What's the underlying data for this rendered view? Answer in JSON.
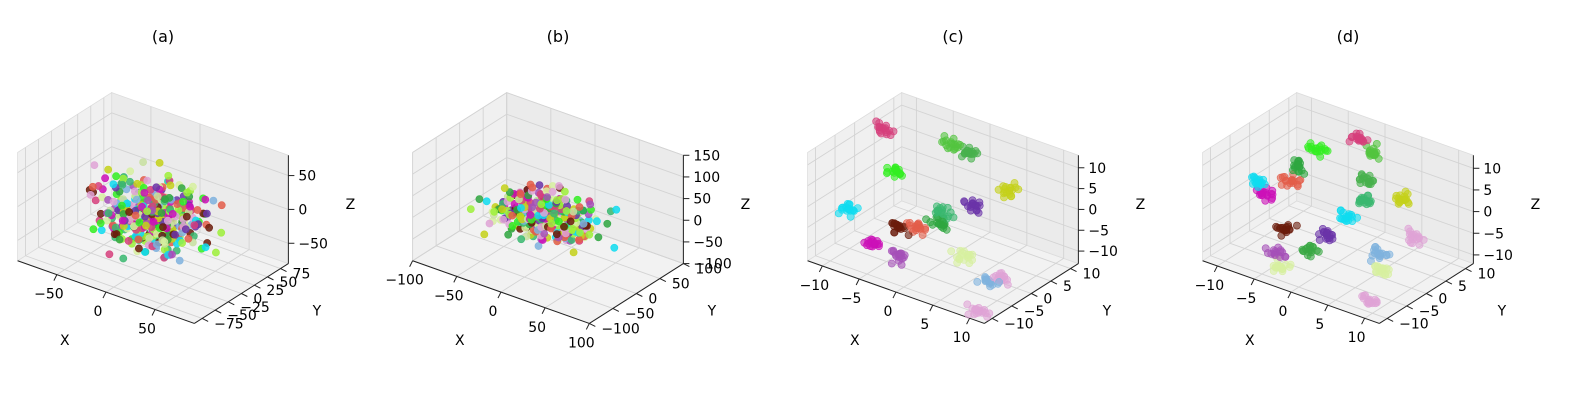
{
  "chart_data": [
    {
      "type": "scatter",
      "title": "(a)",
      "xlabel": "X",
      "ylabel": "Y",
      "zlabel": "Z",
      "xlim": [
        -90,
        90
      ],
      "ylim": [
        -90,
        90
      ],
      "zlim": [
        -80,
        80
      ],
      "xticks": [
        -50,
        0,
        50
      ],
      "xtick_labels": [
        "−50",
        "0",
        "50"
      ],
      "yticks": [
        -75,
        -50,
        -25,
        0,
        25,
        50,
        75
      ],
      "ytick_labels": [
        "−75",
        "−50",
        "−25",
        "0",
        "25",
        "50",
        "75"
      ],
      "zticks": [
        -50,
        0,
        50
      ],
      "ztick_labels": [
        "−50",
        "0",
        "50"
      ],
      "distribution": "dispersed",
      "n_points": 420,
      "spread": [
        48,
        48,
        45
      ],
      "point_radius": 3.6,
      "alpha": 0.85,
      "seed": 11
    },
    {
      "type": "scatter",
      "title": "(b)",
      "xlabel": "X",
      "ylabel": "Y",
      "zlabel": "Z",
      "xlim": [
        -100,
        100
      ],
      "ylim": [
        -100,
        100
      ],
      "zlim": [
        -100,
        150
      ],
      "xticks": [
        -100,
        -50,
        0,
        50,
        100
      ],
      "xtick_labels": [
        "−100",
        "−50",
        "0",
        "50",
        "100"
      ],
      "yticks": [
        -100,
        -50,
        0,
        50,
        100
      ],
      "ytick_labels": [
        "−100",
        "−50",
        "0",
        "50",
        "100"
      ],
      "zticks": [
        -100,
        -50,
        0,
        50,
        100,
        150
      ],
      "ztick_labels": [
        "−100",
        "−50",
        "0",
        "50",
        "100",
        "150"
      ],
      "distribution": "dispersed",
      "n_points": 420,
      "spread": [
        45,
        45,
        28
      ],
      "point_radius": 3.6,
      "alpha": 0.85,
      "seed": 23
    },
    {
      "type": "scatter",
      "title": "(c)",
      "xlabel": "X",
      "ylabel": "Y",
      "zlabel": "Z",
      "xlim": [
        -12,
        12
      ],
      "ylim": [
        -12,
        12
      ],
      "zlim": [
        -13,
        13
      ],
      "xticks": [
        -10,
        -5,
        0,
        5,
        10
      ],
      "xtick_labels": [
        "−10",
        "−5",
        "0",
        "5",
        "10"
      ],
      "yticks": [
        -10,
        -5,
        0,
        5,
        10
      ],
      "ytick_labels": [
        "−10",
        "−5",
        "0",
        "5",
        "10"
      ],
      "zticks": [
        -10,
        -5,
        0,
        5,
        10
      ],
      "ztick_labels": [
        "−10",
        "−5",
        "0",
        "5",
        "10"
      ],
      "distribution": "clusters",
      "cluster_radius": 0.6,
      "points_per_cluster": 18,
      "point_radius": 3.6,
      "alpha": 0.6,
      "seed": 37,
      "clusters": [
        {
          "color": "#0fdcf0",
          "center": [
            -11,
            -3,
            -6
          ]
        },
        {
          "color": "#d63f7c",
          "center": [
            -10,
            4,
            10
          ]
        },
        {
          "color": "#33ee22",
          "center": [
            -7,
            1,
            4
          ]
        },
        {
          "color": "#cc10b8",
          "center": [
            -5,
            -8,
            -7
          ]
        },
        {
          "color": "#a550b8",
          "center": [
            -2,
            -8,
            -8
          ]
        },
        {
          "color": "#6b1c0c",
          "center": [
            -4,
            -4,
            -5
          ]
        },
        {
          "color": "#e35d4a",
          "center": [
            -2,
            -3,
            -4
          ]
        },
        {
          "color": "#2fa640",
          "center": [
            0,
            -1,
            -3
          ]
        },
        {
          "color": "#3ab870",
          "center": [
            0,
            0,
            -1
          ]
        },
        {
          "color": "#53c440",
          "center": [
            -2,
            6,
            11
          ]
        },
        {
          "color": "#47b14c",
          "center": [
            1,
            5,
            11
          ]
        },
        {
          "color": "#6a34a8",
          "center": [
            3,
            2,
            1
          ]
        },
        {
          "color": "#d7f0a0",
          "center": [
            5,
            -4,
            -6
          ]
        },
        {
          "color": "#c4d11a",
          "center": [
            7,
            4,
            6
          ]
        },
        {
          "color": "#7fb2de",
          "center": [
            9,
            -5,
            -9
          ]
        },
        {
          "color": "#dfa3d6",
          "center": [
            10,
            -4,
            -8
          ]
        },
        {
          "color": "#dfa3d6",
          "center": [
            10,
            -9,
            -13
          ]
        }
      ]
    },
    {
      "type": "scatter",
      "title": "(d)",
      "xlabel": "X",
      "ylabel": "Y",
      "zlabel": "Z",
      "xlim": [
        -12,
        12
      ],
      "ylim": [
        -12,
        12
      ],
      "zlim": [
        -12,
        13
      ],
      "xticks": [
        -10,
        -5,
        0,
        5,
        10
      ],
      "xtick_labels": [
        "−10",
        "−5",
        "0",
        "5",
        "10"
      ],
      "yticks": [
        -10,
        -5,
        0,
        5,
        10
      ],
      "ytick_labels": [
        "−10",
        "−5",
        "0",
        "5",
        "10"
      ],
      "zticks": [
        -10,
        -5,
        0,
        5,
        10
      ],
      "ztick_labels": [
        "−10",
        "−5",
        "0",
        "5",
        "10"
      ],
      "distribution": "clusters",
      "cluster_radius": 0.6,
      "points_per_cluster": 18,
      "point_radius": 3.6,
      "alpha": 0.6,
      "seed": 41,
      "clusters": [
        {
          "color": "#0fdcf0",
          "center": [
            -11,
            0,
            0
          ]
        },
        {
          "color": "#cc10b8",
          "center": [
            -9,
            -1,
            -1
          ]
        },
        {
          "color": "#e35d4a",
          "center": [
            -7,
            1,
            2
          ]
        },
        {
          "color": "#2fa640",
          "center": [
            -7,
            3,
            4
          ]
        },
        {
          "color": "#33ee22",
          "center": [
            -6,
            6,
            7
          ]
        },
        {
          "color": "#d63f7c",
          "center": [
            -2,
            9,
            10
          ]
        },
        {
          "color": "#6b1c0c",
          "center": [
            -5,
            -4,
            -5
          ]
        },
        {
          "color": "#a550b8",
          "center": [
            -4,
            -8,
            -8
          ]
        },
        {
          "color": "#d7f0a0",
          "center": [
            -3,
            -9,
            -10
          ]
        },
        {
          "color": "#3aa845",
          "center": [
            -1,
            -5,
            -7
          ]
        },
        {
          "color": "#6a34a8",
          "center": [
            0,
            -3,
            -4
          ]
        },
        {
          "color": "#0fdcf0",
          "center": [
            1,
            0,
            -1
          ]
        },
        {
          "color": "#3ab870",
          "center": [
            2,
            3,
            2
          ]
        },
        {
          "color": "#47b14c",
          "center": [
            1,
            5,
            5
          ]
        },
        {
          "color": "#53c440",
          "center": [
            1,
            7,
            10
          ]
        },
        {
          "color": "#c4d11a",
          "center": [
            7,
            3,
            5
          ]
        },
        {
          "color": "#7fb2de",
          "center": [
            7,
            -3,
            -4
          ]
        },
        {
          "color": "#d7f0a0",
          "center": [
            8,
            -4,
            -7
          ]
        },
        {
          "color": "#dfa3d6",
          "center": [
            10,
            1,
            -1
          ]
        },
        {
          "color": "#dfa3d6",
          "center": [
            8,
            -7,
            -12
          ]
        }
      ]
    }
  ],
  "palette": [
    "#0fdcf0",
    "#d63f7c",
    "#33ee22",
    "#cc10b8",
    "#a550b8",
    "#6b1c0c",
    "#e35d4a",
    "#2fa640",
    "#3ab870",
    "#6a34a8",
    "#d7f0a0",
    "#c4d11a",
    "#7fb2de",
    "#dfa3d6",
    "#9ef03a",
    "#c8e0a0"
  ]
}
